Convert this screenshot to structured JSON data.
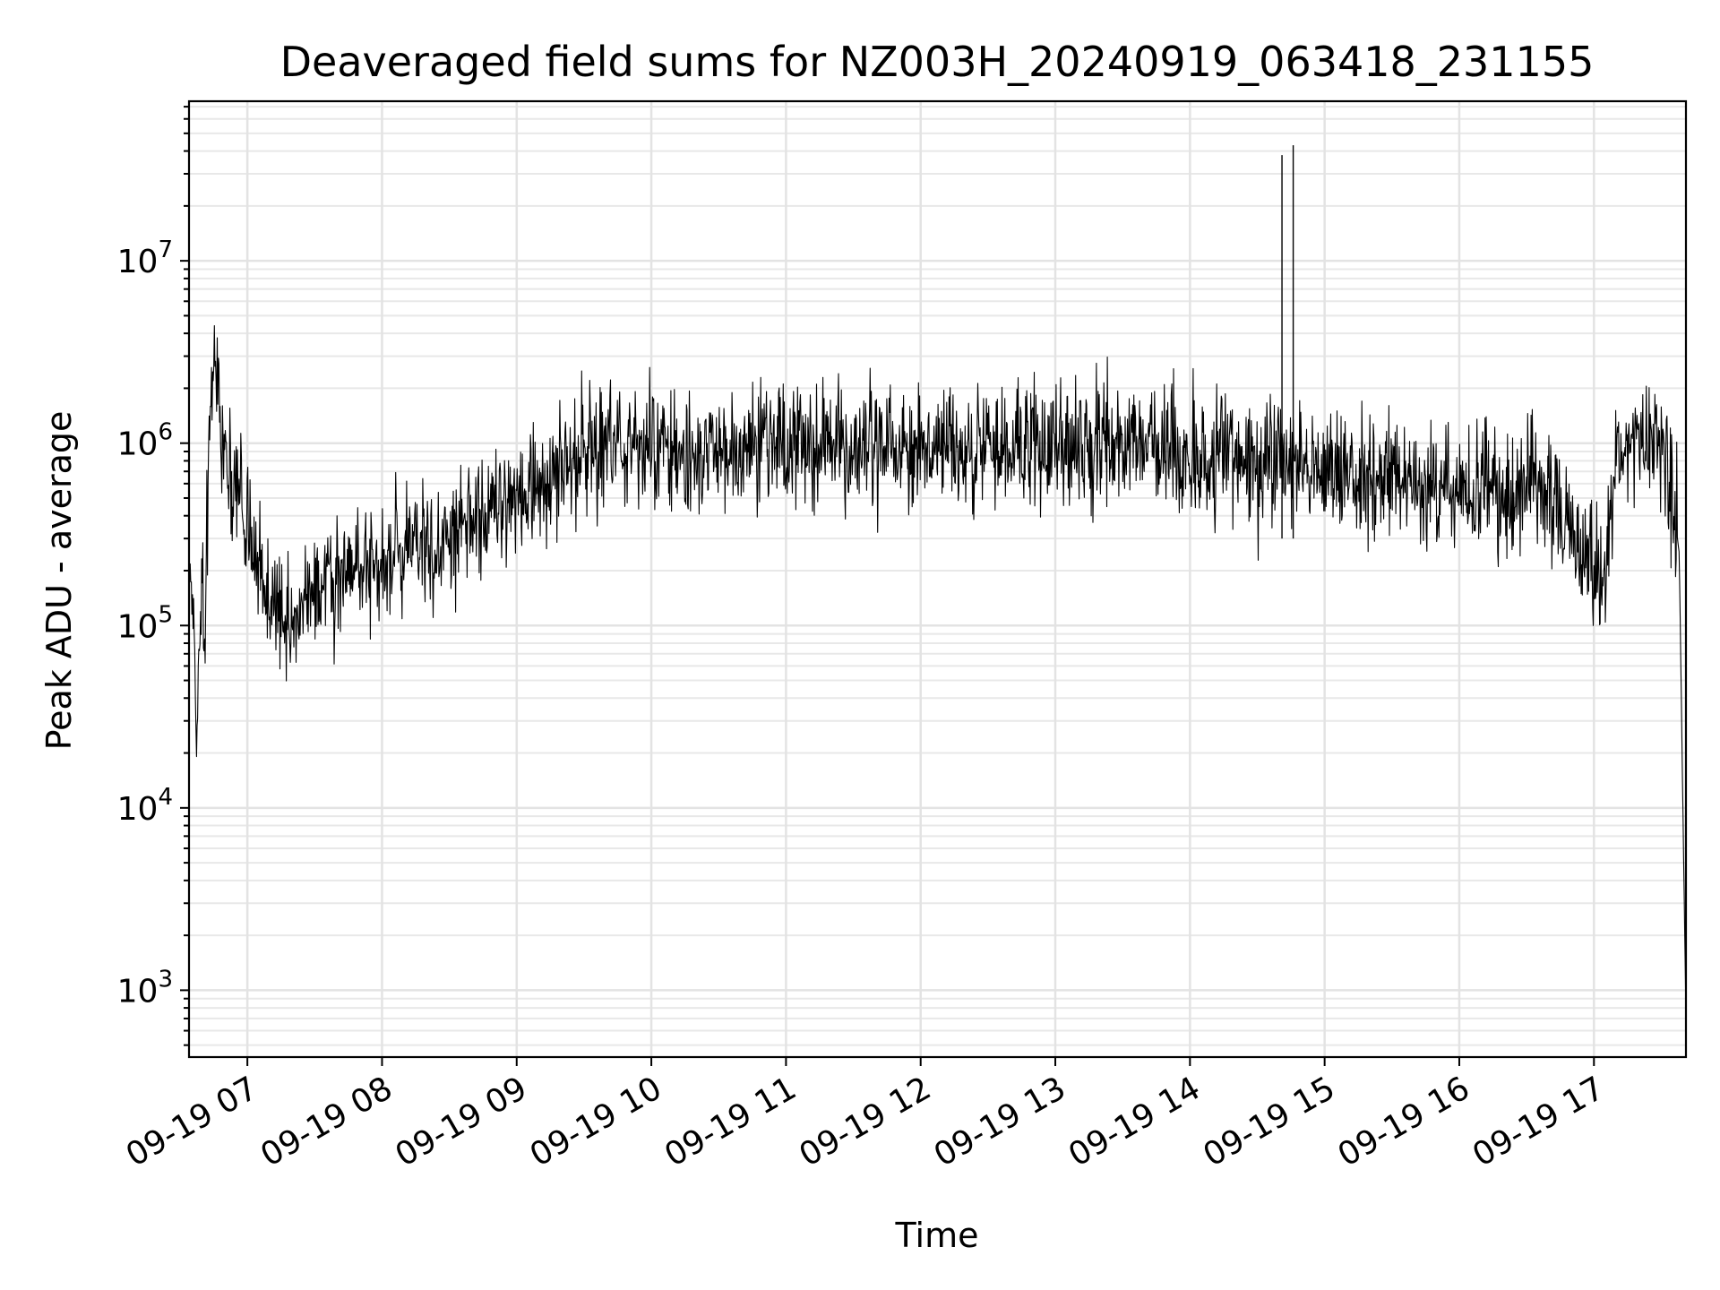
{
  "chart_data": {
    "type": "line",
    "title": "Deaveraged field sums for NZ003H_20240919_063418_231155",
    "xlabel": "Time",
    "ylabel": "Peak ADU - average",
    "yscale": "log",
    "grid": true,
    "line_color": "#000000",
    "xlim": [
      "2024-09-19T06:34:00",
      "2024-09-19T17:41:00"
    ],
    "ylim": [
      430,
      75000000
    ],
    "x_ticks": [
      {
        "value": "2024-09-19T07:00:00",
        "label": "09-19 07"
      },
      {
        "value": "2024-09-19T08:00:00",
        "label": "09-19 08"
      },
      {
        "value": "2024-09-19T09:00:00",
        "label": "09-19 09"
      },
      {
        "value": "2024-09-19T10:00:00",
        "label": "09-19 10"
      },
      {
        "value": "2024-09-19T11:00:00",
        "label": "09-19 11"
      },
      {
        "value": "2024-09-19T12:00:00",
        "label": "09-19 12"
      },
      {
        "value": "2024-09-19T13:00:00",
        "label": "09-19 13"
      },
      {
        "value": "2024-09-19T14:00:00",
        "label": "09-19 14"
      },
      {
        "value": "2024-09-19T15:00:00",
        "label": "09-19 15"
      },
      {
        "value": "2024-09-19T16:00:00",
        "label": "09-19 16"
      },
      {
        "value": "2024-09-19T17:00:00",
        "label": "09-19 17"
      }
    ],
    "y_ticks": [
      {
        "value": 1000,
        "base": "10",
        "exp": "3"
      },
      {
        "value": 10000,
        "base": "10",
        "exp": "4"
      },
      {
        "value": 100000,
        "base": "10",
        "exp": "5"
      },
      {
        "value": 1000000,
        "base": "10",
        "exp": "6"
      },
      {
        "value": 10000000,
        "base": "10",
        "exp": "7"
      }
    ],
    "series": [
      {
        "x": [
          "2024-09-19T06:34:00",
          "2024-09-19T06:36:00",
          "2024-09-19T06:37:00",
          "2024-09-19T06:40:00",
          "2024-09-19T06:41:00",
          "2024-09-19T06:43:00",
          "2024-09-19T06:46:00",
          "2024-09-19T06:48:00",
          "2024-09-19T06:52:00",
          "2024-09-19T06:56:00",
          "2024-09-19T07:00:00",
          "2024-09-19T07:05:00",
          "2024-09-19T07:10:00",
          "2024-09-19T07:15:00",
          "2024-09-19T07:20:00",
          "2024-09-19T07:25:00",
          "2024-09-19T07:30:00",
          "2024-09-19T07:40:00",
          "2024-09-19T07:50:00",
          "2024-09-19T08:00:00",
          "2024-09-19T08:10:00",
          "2024-09-19T08:20:00",
          "2024-09-19T08:30:00",
          "2024-09-19T08:40:00",
          "2024-09-19T08:50:00",
          "2024-09-19T09:00:00",
          "2024-09-19T09:10:00",
          "2024-09-19T09:20:00",
          "2024-09-19T09:30:00",
          "2024-09-19T09:40:00",
          "2024-09-19T09:50:00",
          "2024-09-19T10:00:00",
          "2024-09-19T10:15:00",
          "2024-09-19T10:30:00",
          "2024-09-19T10:45:00",
          "2024-09-19T11:00:00",
          "2024-09-19T11:15:00",
          "2024-09-19T11:30:00",
          "2024-09-19T11:45:00",
          "2024-09-19T12:00:00",
          "2024-09-19T12:15:00",
          "2024-09-19T12:30:00",
          "2024-09-19T12:45:00",
          "2024-09-19T13:00:00",
          "2024-09-19T13:15:00",
          "2024-09-19T13:30:00",
          "2024-09-19T13:45:00",
          "2024-09-19T14:00:00",
          "2024-09-19T14:15:00",
          "2024-09-19T14:30:00",
          "2024-09-19T14:45:00",
          "2024-09-19T15:00:00",
          "2024-09-19T15:15:00",
          "2024-09-19T15:30:00",
          "2024-09-19T15:45:00",
          "2024-09-19T16:00:00",
          "2024-09-19T16:10:00",
          "2024-09-19T16:20:00",
          "2024-09-19T16:30:00",
          "2024-09-19T16:40:00",
          "2024-09-19T16:50:00",
          "2024-09-19T17:00:00",
          "2024-09-19T17:05:00",
          "2024-09-19T17:10:00",
          "2024-09-19T17:15:00",
          "2024-09-19T17:20:00",
          "2024-09-19T17:25:00",
          "2024-09-19T17:30:00",
          "2024-09-19T17:35:00",
          "2024-09-19T17:38:00",
          "2024-09-19T17:41:00"
        ],
        "y": [
          150000,
          180000,
          25000,
          190000,
          80000,
          1300000,
          2800000,
          1500000,
          700000,
          500000,
          350000,
          200000,
          150000,
          110000,
          90000,
          150000,
          170000,
          180000,
          200000,
          230000,
          250000,
          300000,
          330000,
          380000,
          420000,
          500000,
          520000,
          800000,
          900000,
          950000,
          1000000,
          900000,
          850000,
          850000,
          900000,
          1000000,
          1000000,
          950000,
          900000,
          950000,
          950000,
          950000,
          950000,
          1000000,
          1000000,
          1000000,
          1100000,
          800000,
          850000,
          750000,
          750000,
          700000,
          700000,
          650000,
          600000,
          500000,
          550000,
          500000,
          600000,
          500000,
          300000,
          200000,
          180000,
          800000,
          1200000,
          900000,
          1100000,
          1000000,
          500000,
          250000,
          700
        ]
      }
    ],
    "spikes": [
      {
        "x": "2024-09-19T14:41:00",
        "y": 38000000
      },
      {
        "x": "2024-09-19T14:46:00",
        "y": 43000000
      }
    ]
  }
}
